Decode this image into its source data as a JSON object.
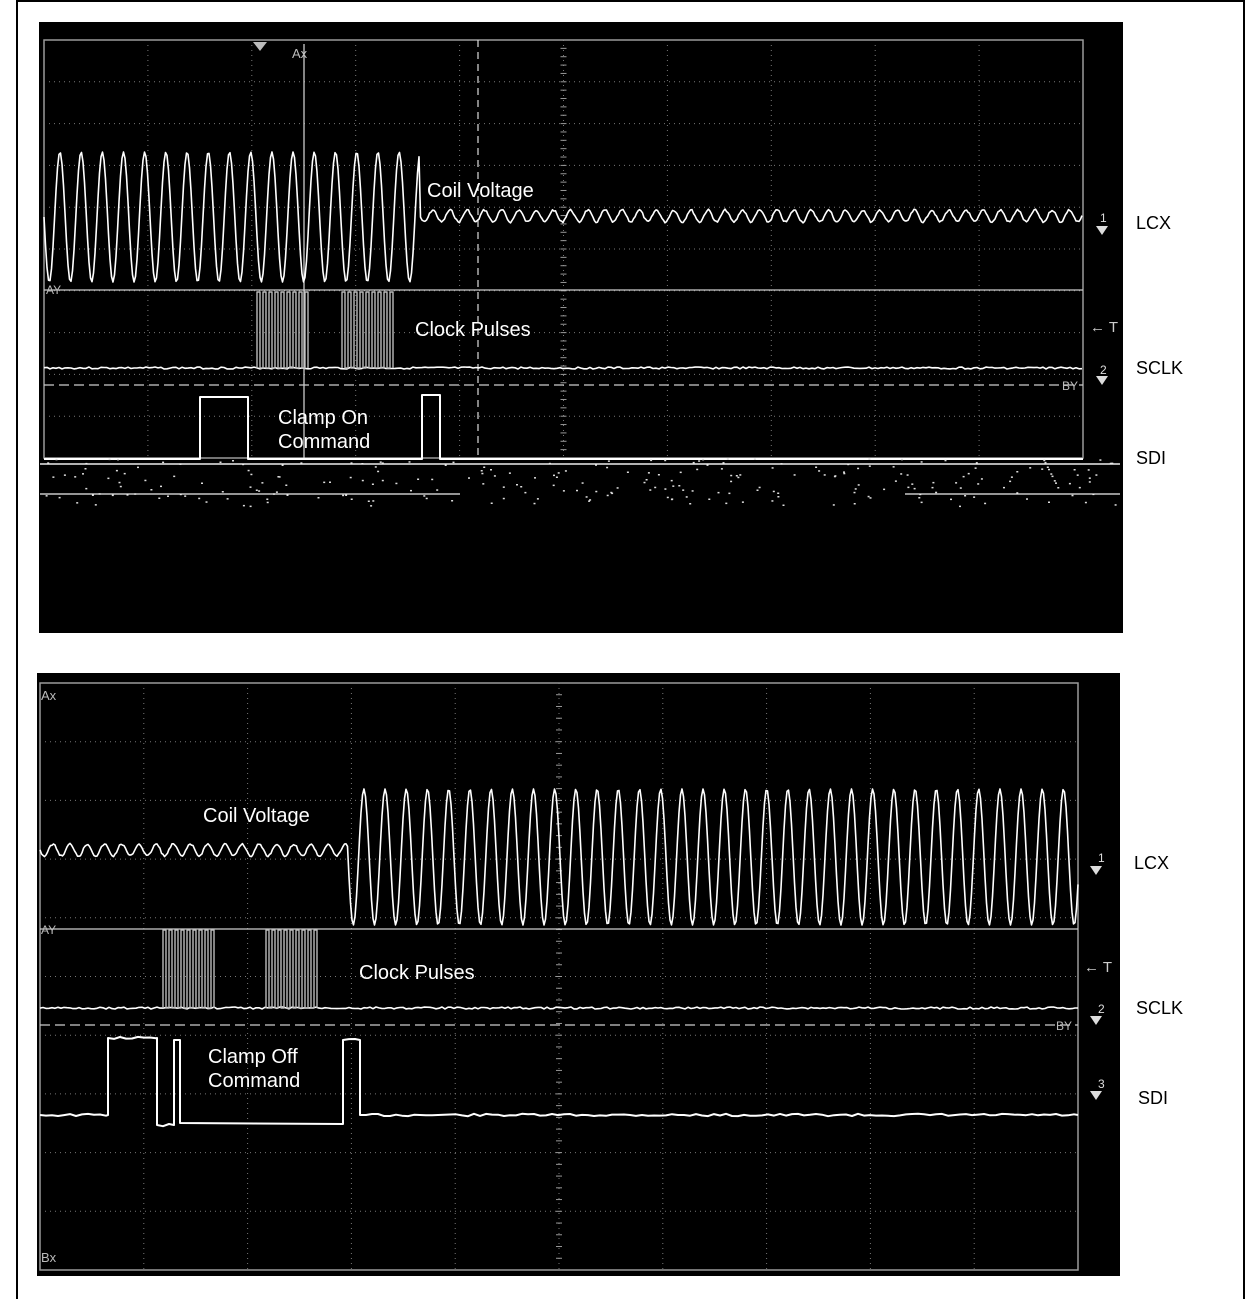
{
  "scopes": [
    {
      "id": "clamp-on",
      "labels": {
        "coil": "Coil Voltage",
        "clock": "Clock Pulses",
        "cmd_line1": "Clamp On",
        "cmd_line2": "Command"
      },
      "side_labels": {
        "lcx": "LCX",
        "sclk": "SCLK",
        "sdi": "SDI"
      },
      "markers": {
        "ax": "Ax",
        "ay": "AY",
        "by": "BY",
        "t": "← T",
        "ch1": "1",
        "ch2": "2"
      }
    },
    {
      "id": "clamp-off",
      "labels": {
        "coil": "Coil Voltage",
        "clock": "Clock Pulses",
        "cmd_line1": "Clamp Off",
        "cmd_line2": "Command"
      },
      "side_labels": {
        "lcx": "LCX",
        "sclk": "SCLK",
        "sdi": "SDI"
      },
      "markers": {
        "ax": "Ax",
        "ay": "AY",
        "by": "BY",
        "bx": "Bx",
        "t": "← T",
        "ch1": "1",
        "ch2": "2",
        "ch3": "3"
      }
    }
  ],
  "colors": {
    "screen": "#000000",
    "trace": "#ffffff",
    "grid": "#9a9a9a",
    "page": "#ffffff"
  }
}
